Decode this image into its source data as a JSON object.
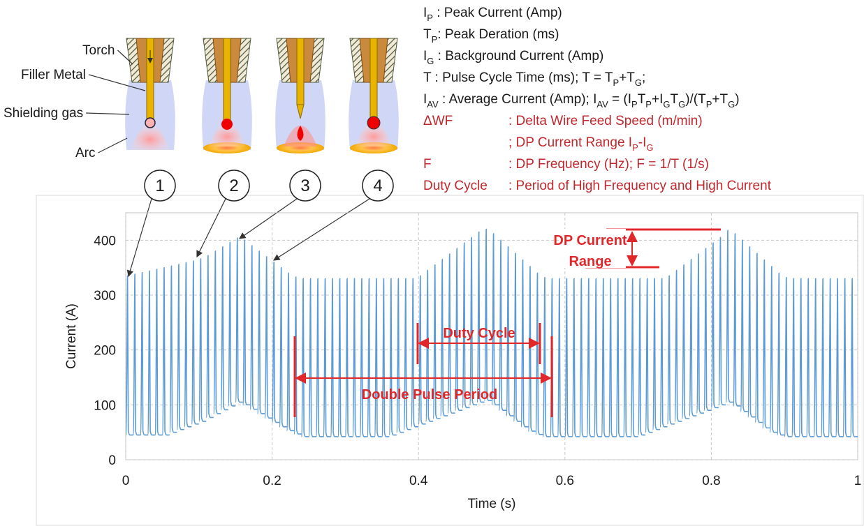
{
  "definitions": [
    {
      "color": "#1a1a1a",
      "parts": [
        "I",
        {
          "sub": "P"
        },
        " : Peak Current (Amp)"
      ]
    },
    {
      "color": "#1a1a1a",
      "parts": [
        "T",
        {
          "sub": "P"
        },
        ": Peak Deration (ms)"
      ]
    },
    {
      "color": "#1a1a1a",
      "parts": [
        "I",
        {
          "sub": "G"
        },
        " : Background Current (Amp)"
      ]
    },
    {
      "color": "#1a1a1a",
      "parts": [
        "T   : Pulse Cycle Time (ms); T = T",
        {
          "sub": "P"
        },
        "+T",
        {
          "sub": "G"
        },
        ";"
      ]
    },
    {
      "color": "#1a1a1a",
      "parts": [
        "I",
        {
          "sub": "AV"
        },
        " : Average Current (Amp); I",
        {
          "sub": "AV"
        },
        " = (I",
        {
          "sub": "P"
        },
        "T",
        {
          "sub": "P"
        },
        "+I",
        {
          "sub": "G"
        },
        "T",
        {
          "sub": "G"
        },
        ")/(T",
        {
          "sub": "P"
        },
        "+T",
        {
          "sub": "G"
        },
        ")"
      ]
    },
    {
      "color": "#c0272d",
      "parts": [
        "ΔWF",
        {
          "tab": ": Delta Wire Feed Speed (m/min)"
        }
      ]
    },
    {
      "color": "#c0272d",
      "parts": [
        {
          "tab": "; DP Current Range I"
        },
        {
          "sub": "P"
        },
        "-I",
        {
          "sub": "G"
        }
      ]
    },
    {
      "color": "#c0272d",
      "parts": [
        "F",
        {
          "tab": ": DP Frequency (Hz); F = 1/T    (1/s)"
        }
      ]
    },
    {
      "color": "#c0272d",
      "parts": [
        "Duty Cycle ",
        {
          "tab": ": Period of High Frequency and High Current"
        }
      ]
    }
  ],
  "diagram": {
    "labels": [
      "Torch",
      "Filler Metal",
      "Shielding gas",
      "Arc"
    ],
    "steps": [
      "1",
      "2",
      "3",
      "4"
    ]
  },
  "chart_data": {
    "type": "line",
    "color": "#5b9bd5",
    "x_label": "Time (s)",
    "y_label": "Current (A)",
    "xlim": [
      0,
      1
    ],
    "ylim": [
      0,
      450
    ],
    "xticks": [
      0,
      0.2,
      0.4,
      0.6,
      0.8,
      1
    ],
    "yticks": [
      0,
      100,
      200,
      300,
      400
    ],
    "grid": true,
    "annotations": {
      "dp_current_range": [
        "DP Current",
        "Range"
      ],
      "duty_cycle": "Duty Cycle",
      "double_pulse_period": "Double Pulse Period"
    },
    "x": [
      0,
      0.01,
      0.02,
      0.03,
      0.04,
      0.05,
      0.06,
      0.07,
      0.08,
      0.09,
      0.1,
      0.11,
      0.12,
      0.13,
      0.14,
      0.15,
      0.16,
      0.17,
      0.18,
      0.19,
      0.2,
      0.21,
      0.22,
      0.23,
      0.24,
      0.25,
      0.26,
      0.27,
      0.28,
      0.29,
      0.3,
      0.31,
      0.32,
      0.33,
      0.34,
      0.35,
      0.36,
      0.37,
      0.38,
      0.39,
      0.4,
      0.41,
      0.42,
      0.43,
      0.44,
      0.45,
      0.46,
      0.47,
      0.48,
      0.49,
      0.5,
      0.51,
      0.52,
      0.53,
      0.54,
      0.55,
      0.56,
      0.57,
      0.58,
      0.59,
      0.6,
      0.61,
      0.62,
      0.63,
      0.64,
      0.65,
      0.66,
      0.67,
      0.68,
      0.69,
      0.7,
      0.71,
      0.72,
      0.73,
      0.74,
      0.75,
      0.76,
      0.77,
      0.78,
      0.79,
      0.8,
      0.81,
      0.82,
      0.83,
      0.84,
      0.85,
      0.86,
      0.87,
      0.88,
      0.89,
      0.9,
      0.91,
      0.92,
      0.93,
      0.94,
      0.95,
      0.96,
      0.97,
      0.98,
      0.99
    ],
    "peak_values": [
      335,
      338,
      341,
      344,
      347,
      350,
      353,
      356,
      359,
      362,
      366,
      372,
      380,
      388,
      396,
      404,
      400,
      390,
      380,
      370,
      360,
      350,
      340,
      333,
      330,
      330,
      330,
      330,
      330,
      330,
      330,
      330,
      330,
      330,
      330,
      330,
      330,
      330,
      330,
      330,
      335,
      345,
      355,
      365,
      375,
      385,
      395,
      405,
      415,
      420,
      412,
      400,
      388,
      376,
      364,
      352,
      340,
      332,
      330,
      330,
      330,
      330,
      330,
      330,
      330,
      330,
      330,
      330,
      330,
      330,
      330,
      330,
      330,
      330,
      335,
      345,
      355,
      365,
      375,
      385,
      395,
      405,
      418,
      412,
      400,
      388,
      376,
      364,
      352,
      340,
      332,
      330,
      330,
      330,
      330,
      330,
      330,
      330,
      330,
      330
    ],
    "base_values": [
      45,
      45,
      45,
      45,
      45,
      45,
      50,
      55,
      60,
      65,
      70,
      77,
      84,
      91,
      98,
      105,
      100,
      92,
      84,
      76,
      68,
      60,
      53,
      47,
      42,
      42,
      42,
      42,
      42,
      42,
      42,
      42,
      42,
      42,
      42,
      42,
      45,
      50,
      55,
      60,
      65,
      70,
      75,
      80,
      85,
      90,
      95,
      100,
      105,
      108,
      100,
      90,
      80,
      70,
      60,
      52,
      46,
      42,
      42,
      42,
      42,
      42,
      42,
      42,
      42,
      42,
      42,
      42,
      42,
      42,
      45,
      50,
      55,
      60,
      65,
      70,
      75,
      80,
      85,
      90,
      95,
      100,
      105,
      98,
      88,
      78,
      68,
      58,
      50,
      45,
      42,
      42,
      42,
      42,
      42,
      42,
      42,
      42,
      42,
      42
    ]
  }
}
